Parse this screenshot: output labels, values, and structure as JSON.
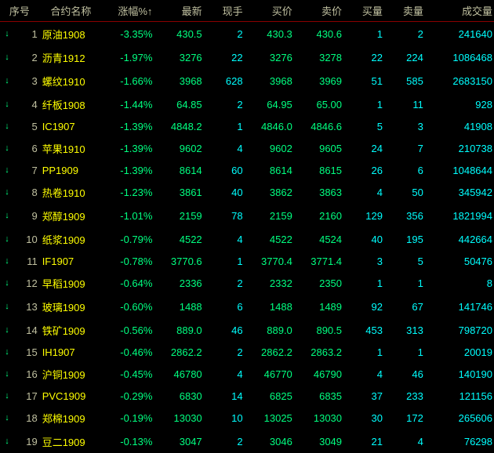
{
  "colors": {
    "background": "#000000",
    "header_text": "#c0c0a0",
    "header_border": "#8b0000",
    "index_text": "#c0c0a0",
    "name_text": "#ffff00",
    "negative": "#00ff80",
    "volume": "#00ffff",
    "arrow": "#00ff80"
  },
  "headers": {
    "idx": "序号",
    "name": "合约名称",
    "pct": "涨幅%↑",
    "last": "最新",
    "amt": "现手",
    "bid": "买价",
    "ask": "卖价",
    "bidv": "买量",
    "askv": "卖量",
    "tvol": "成交量"
  },
  "rows": [
    {
      "idx": "1",
      "name": "原油1908",
      "pct": "-3.35%",
      "last": "430.5",
      "amt": "2",
      "bid": "430.3",
      "ask": "430.6",
      "bidv": "1",
      "askv": "2",
      "tvol": "241640"
    },
    {
      "idx": "2",
      "name": "沥青1912",
      "pct": "-1.97%",
      "last": "3276",
      "amt": "22",
      "bid": "3276",
      "ask": "3278",
      "bidv": "22",
      "askv": "224",
      "tvol": "1086468"
    },
    {
      "idx": "3",
      "name": "螺纹1910",
      "pct": "-1.66%",
      "last": "3968",
      "amt": "628",
      "bid": "3968",
      "ask": "3969",
      "bidv": "51",
      "askv": "585",
      "tvol": "2683150"
    },
    {
      "idx": "4",
      "name": "纤板1908",
      "pct": "-1.44%",
      "last": "64.85",
      "amt": "2",
      "bid": "64.95",
      "ask": "65.00",
      "bidv": "1",
      "askv": "11",
      "tvol": "928"
    },
    {
      "idx": "5",
      "name": "IC1907",
      "pct": "-1.39%",
      "last": "4848.2",
      "amt": "1",
      "bid": "4846.0",
      "ask": "4846.6",
      "bidv": "5",
      "askv": "3",
      "tvol": "41908"
    },
    {
      "idx": "6",
      "name": "苹果1910",
      "pct": "-1.39%",
      "last": "9602",
      "amt": "4",
      "bid": "9602",
      "ask": "9605",
      "bidv": "24",
      "askv": "7",
      "tvol": "210738"
    },
    {
      "idx": "7",
      "name": "PP1909",
      "pct": "-1.39%",
      "last": "8614",
      "amt": "60",
      "bid": "8614",
      "ask": "8615",
      "bidv": "26",
      "askv": "6",
      "tvol": "1048644"
    },
    {
      "idx": "8",
      "name": "热卷1910",
      "pct": "-1.23%",
      "last": "3861",
      "amt": "40",
      "bid": "3862",
      "ask": "3863",
      "bidv": "4",
      "askv": "50",
      "tvol": "345942"
    },
    {
      "idx": "9",
      "name": "郑醇1909",
      "pct": "-1.01%",
      "last": "2159",
      "amt": "78",
      "bid": "2159",
      "ask": "2160",
      "bidv": "129",
      "askv": "356",
      "tvol": "1821994"
    },
    {
      "idx": "10",
      "name": "纸浆1909",
      "pct": "-0.79%",
      "last": "4522",
      "amt": "4",
      "bid": "4522",
      "ask": "4524",
      "bidv": "40",
      "askv": "195",
      "tvol": "442664"
    },
    {
      "idx": "11",
      "name": "IF1907",
      "pct": "-0.78%",
      "last": "3770.6",
      "amt": "1",
      "bid": "3770.4",
      "ask": "3771.4",
      "bidv": "3",
      "askv": "5",
      "tvol": "50476"
    },
    {
      "idx": "12",
      "name": "早稻1909",
      "pct": "-0.64%",
      "last": "2336",
      "amt": "2",
      "bid": "2332",
      "ask": "2350",
      "bidv": "1",
      "askv": "1",
      "tvol": "8"
    },
    {
      "idx": "13",
      "name": "玻璃1909",
      "pct": "-0.60%",
      "last": "1488",
      "amt": "6",
      "bid": "1488",
      "ask": "1489",
      "bidv": "92",
      "askv": "67",
      "tvol": "141746"
    },
    {
      "idx": "14",
      "name": "铁矿1909",
      "pct": "-0.56%",
      "last": "889.0",
      "amt": "46",
      "bid": "889.0",
      "ask": "890.5",
      "bidv": "453",
      "askv": "313",
      "tvol": "798720"
    },
    {
      "idx": "15",
      "name": "IH1907",
      "pct": "-0.46%",
      "last": "2862.2",
      "amt": "2",
      "bid": "2862.2",
      "ask": "2863.2",
      "bidv": "1",
      "askv": "1",
      "tvol": "20019"
    },
    {
      "idx": "16",
      "name": "沪铜1909",
      "pct": "-0.45%",
      "last": "46780",
      "amt": "4",
      "bid": "46770",
      "ask": "46790",
      "bidv": "4",
      "askv": "46",
      "tvol": "140190"
    },
    {
      "idx": "17",
      "name": "PVC1909",
      "pct": "-0.29%",
      "last": "6830",
      "amt": "14",
      "bid": "6825",
      "ask": "6835",
      "bidv": "37",
      "askv": "233",
      "tvol": "121156"
    },
    {
      "idx": "18",
      "name": "郑棉1909",
      "pct": "-0.19%",
      "last": "13030",
      "amt": "10",
      "bid": "13025",
      "ask": "13030",
      "bidv": "30",
      "askv": "172",
      "tvol": "265606"
    },
    {
      "idx": "19",
      "name": "豆二1909",
      "pct": "-0.13%",
      "last": "3047",
      "amt": "2",
      "bid": "3046",
      "ask": "3049",
      "bidv": "21",
      "askv": "4",
      "tvol": "76298"
    }
  ]
}
